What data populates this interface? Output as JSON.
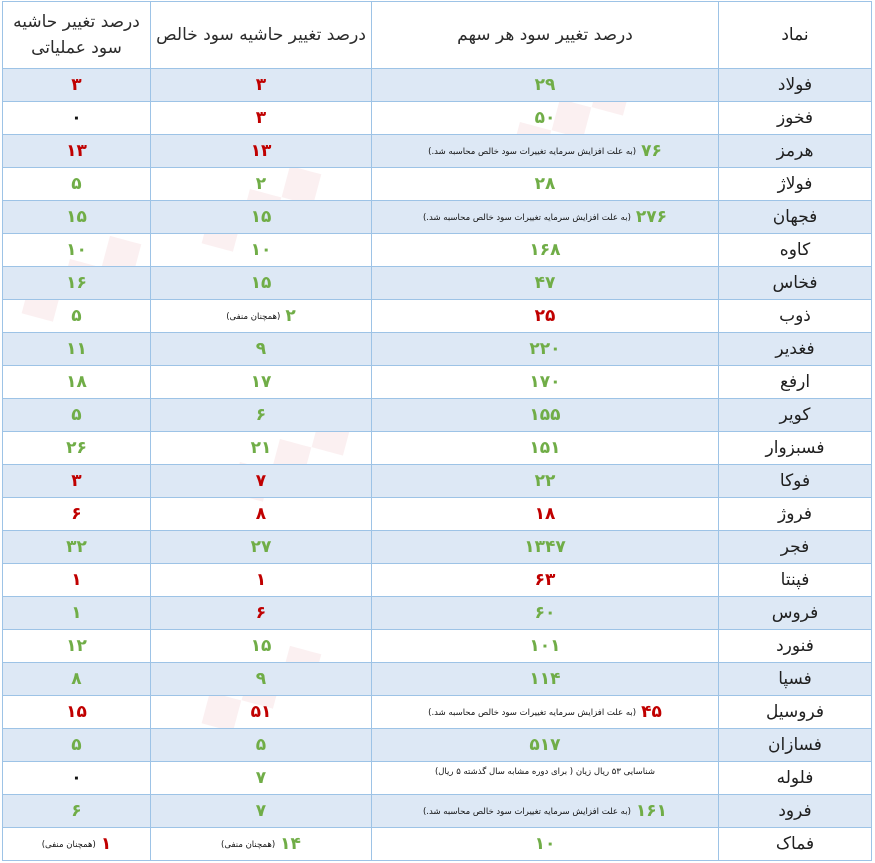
{
  "headers": {
    "symbol": "نماد",
    "eps_change": "درصد تغییر سود هر سهم",
    "net_margin_change": "درصد تغییر حاشیه سود خالص",
    "op_margin_change": "درصد تغییر حاشیه سود عملیاتی"
  },
  "colors": {
    "positive": "#70ad47",
    "negative": "#c00000",
    "neutral": "#111111",
    "row_alt": "#dde8f5",
    "border": "#9dc3e6"
  },
  "rows": [
    {
      "symbol": "فولاد",
      "eps": "۲۹",
      "eps_color": "green",
      "eps_note": "",
      "npm": "۳",
      "npm_color": "red",
      "npm_note": "",
      "opm": "۳",
      "opm_color": "red",
      "opm_note": ""
    },
    {
      "symbol": "فخوز",
      "eps": "۵۰",
      "eps_color": "green",
      "eps_note": "",
      "npm": "۳",
      "npm_color": "red",
      "npm_note": "",
      "opm": "۰",
      "opm_color": "black",
      "opm_note": ""
    },
    {
      "symbol": "هرمز",
      "eps": "۷۶",
      "eps_color": "green",
      "eps_note": "(به علت افزایش سرمایه تغییرات سود خالص محاسبه شد.)",
      "npm": "۱۳",
      "npm_color": "red",
      "npm_note": "",
      "opm": "۱۳",
      "opm_color": "red",
      "opm_note": ""
    },
    {
      "symbol": "فولاژ",
      "eps": "۲۸",
      "eps_color": "green",
      "eps_note": "",
      "npm": "۲",
      "npm_color": "green",
      "npm_note": "",
      "opm": "۵",
      "opm_color": "green",
      "opm_note": ""
    },
    {
      "symbol": "فجهان",
      "eps": "۲۷۶",
      "eps_color": "green",
      "eps_note": "(به علت افزایش سرمایه تغییرات سود خالص محاسبه شد.)",
      "npm": "۱۵",
      "npm_color": "green",
      "npm_note": "",
      "opm": "۱۵",
      "opm_color": "green",
      "opm_note": ""
    },
    {
      "symbol": "کاوه",
      "eps": "۱۶۸",
      "eps_color": "green",
      "eps_note": "",
      "npm": "۱۰",
      "npm_color": "green",
      "npm_note": "",
      "opm": "۱۰",
      "opm_color": "green",
      "opm_note": ""
    },
    {
      "symbol": "فخاس",
      "eps": "۴۷",
      "eps_color": "green",
      "eps_note": "",
      "npm": "۱۵",
      "npm_color": "green",
      "npm_note": "",
      "opm": "۱۶",
      "opm_color": "green",
      "opm_note": ""
    },
    {
      "symbol": "ذوب",
      "eps": "۲۵",
      "eps_color": "red",
      "eps_note": "",
      "npm": "۲",
      "npm_color": "green",
      "npm_note": "(همچنان منفی)",
      "opm": "۵",
      "opm_color": "green",
      "opm_note": ""
    },
    {
      "symbol": "فغدیر",
      "eps": "۲۲۰",
      "eps_color": "green",
      "eps_note": "",
      "npm": "۹",
      "npm_color": "green",
      "npm_note": "",
      "opm": "۱۱",
      "opm_color": "green",
      "opm_note": ""
    },
    {
      "symbol": "ارفع",
      "eps": "۱۷۰",
      "eps_color": "green",
      "eps_note": "",
      "npm": "۱۷",
      "npm_color": "green",
      "npm_note": "",
      "opm": "۱۸",
      "opm_color": "green",
      "opm_note": ""
    },
    {
      "symbol": "کویر",
      "eps": "۱۵۵",
      "eps_color": "green",
      "eps_note": "",
      "npm": "۶",
      "npm_color": "green",
      "npm_note": "",
      "opm": "۵",
      "opm_color": "green",
      "opm_note": ""
    },
    {
      "symbol": "فسبزوار",
      "eps": "۱۵۱",
      "eps_color": "green",
      "eps_note": "",
      "npm": "۲۱",
      "npm_color": "green",
      "npm_note": "",
      "opm": "۲۶",
      "opm_color": "green",
      "opm_note": ""
    },
    {
      "symbol": "فوکا",
      "eps": "۲۲",
      "eps_color": "green",
      "eps_note": "",
      "npm": "۷",
      "npm_color": "red",
      "npm_note": "",
      "opm": "۳",
      "opm_color": "red",
      "opm_note": ""
    },
    {
      "symbol": "فروژ",
      "eps": "۱۸",
      "eps_color": "red",
      "eps_note": "",
      "npm": "۸",
      "npm_color": "red",
      "npm_note": "",
      "opm": "۶",
      "opm_color": "red",
      "opm_note": ""
    },
    {
      "symbol": "فجر",
      "eps": "۱۳۴۷",
      "eps_color": "green",
      "eps_note": "",
      "npm": "۲۷",
      "npm_color": "green",
      "npm_note": "",
      "opm": "۳۲",
      "opm_color": "green",
      "opm_note": ""
    },
    {
      "symbol": "فپنتا",
      "eps": "۶۳",
      "eps_color": "red",
      "eps_note": "",
      "npm": "۱",
      "npm_color": "red",
      "npm_note": "",
      "opm": "۱",
      "opm_color": "red",
      "opm_note": ""
    },
    {
      "symbol": "فروس",
      "eps": "۶۰",
      "eps_color": "green",
      "eps_note": "",
      "npm": "۶",
      "npm_color": "red",
      "npm_note": "",
      "opm": "۱",
      "opm_color": "green",
      "opm_note": ""
    },
    {
      "symbol": "فنورد",
      "eps": "۱۰۱",
      "eps_color": "green",
      "eps_note": "",
      "npm": "۱۵",
      "npm_color": "green",
      "npm_note": "",
      "opm": "۱۲",
      "opm_color": "green",
      "opm_note": ""
    },
    {
      "symbol": "فسپا",
      "eps": "۱۱۴",
      "eps_color": "green",
      "eps_note": "",
      "npm": "۹",
      "npm_color": "green",
      "npm_note": "",
      "opm": "۸",
      "opm_color": "green",
      "opm_note": ""
    },
    {
      "symbol": "فروسیل",
      "eps": "۴۵",
      "eps_color": "red",
      "eps_note": "(به علت افزایش سرمایه تغییرات سود خالص محاسبه شد.)",
      "npm": "۵۱",
      "npm_color": "red",
      "npm_note": "",
      "opm": "۱۵",
      "opm_color": "red",
      "opm_note": ""
    },
    {
      "symbol": "فسازان",
      "eps": "۵۱۷",
      "eps_color": "green",
      "eps_note": "",
      "npm": "۵",
      "npm_color": "green",
      "npm_note": "",
      "opm": "۵",
      "opm_color": "green",
      "opm_note": ""
    },
    {
      "symbol": "فلوله",
      "eps": "",
      "eps_color": "green",
      "eps_note": "شناسایی ۵۳ ریال زیان ( برای دوره مشابه سال گذشته ۵ ریال)",
      "npm": "۷",
      "npm_color": "green",
      "npm_note": "",
      "opm": "۰",
      "opm_color": "black",
      "opm_note": ""
    },
    {
      "symbol": "فرود",
      "eps": "۱۶۱",
      "eps_color": "green",
      "eps_note": "(به علت افزایش سرمایه تغییرات سود خالص محاسبه شد.)",
      "npm": "۷",
      "npm_color": "green",
      "npm_note": "",
      "opm": "۶",
      "opm_color": "green",
      "opm_note": ""
    },
    {
      "symbol": "فماک",
      "eps": "۱۰",
      "eps_color": "green",
      "eps_note": "",
      "npm": "۱۴",
      "npm_color": "green",
      "npm_note": "(همچنان منفی)",
      "opm": "۱",
      "opm_color": "red",
      "opm_note": "(همچنان منفی)"
    }
  ]
}
